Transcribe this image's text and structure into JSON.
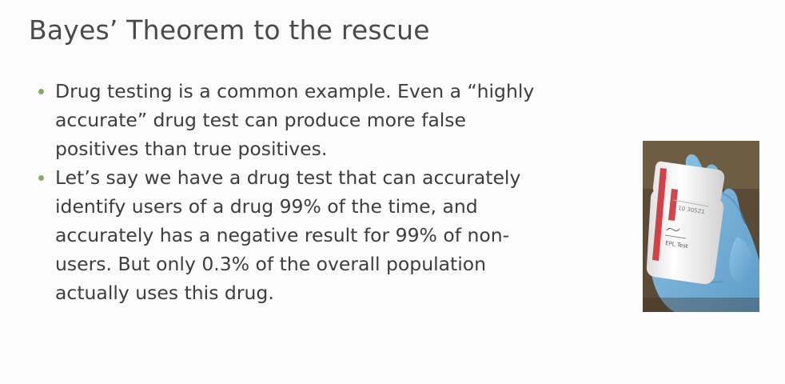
{
  "slide": {
    "title": "Bayes’ Theorem to the rescue",
    "bullets": [
      {
        "lines": [
          "Drug testing is a common example. Even a “highly",
          "accurate” drug test can produce more false",
          "positives than true positives."
        ]
      },
      {
        "lines": [
          "Let’s say we have a drug test that can accurately",
          "identify users of a drug 99% of the time, and",
          "accurately has a negative result for 99% of non-",
          "users. But only 0.3% of the overall population",
          "actually uses this drug."
        ]
      }
    ],
    "bullet_color": "#8aaa68",
    "photo": {
      "icon": "gloved-hand-holding-specimen-bottle",
      "bottle_label": "EPL Test"
    }
  }
}
